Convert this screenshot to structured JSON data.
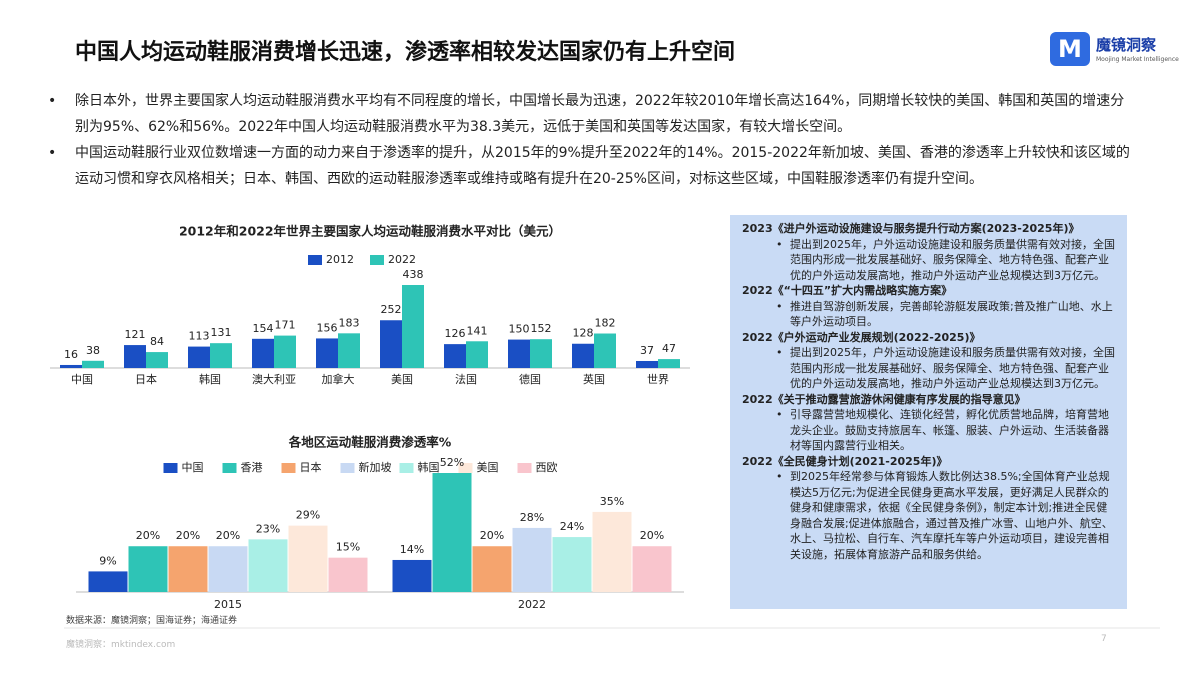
{
  "header": {
    "title": "中国人均运动鞋服消费增长迅速，渗透率相较发达国家仍有上升空间",
    "logo_name": "魔镜洞察",
    "logo_sub": "Moojing Market Intelligence"
  },
  "bullets": [
    "除日本外，世界主要国家人均运动鞋服消费水平均有不同程度的增长，中国增长最为迅速，2022年较2010年增长高达164%，同期增长较快的美国、韩国和英国的增速分别为95%、62%和56%。2022年中国人均运动鞋服消费水平为38.3美元，远低于美国和英国等发达国家，有较大增长空间。",
    "中国运动鞋服行业双位数增速一方面的动力来自于渗透率的提升，从2015年的9%提升至2022年的14%。2015-2022年新加坡、美国、香港的渗透率上升较快和该区域的运动习惯和穿衣风格相关；日本、韩国、西欧的运动鞋服渗透率或维持或略有提升在20-25%区间，对标这些区域，中国鞋服渗透率仍有提升空间。"
  ],
  "chart_data": [
    {
      "type": "bar",
      "title": "2012年和2022年世界主要国家人均运动鞋服消费水平对比（美元）",
      "categories": [
        "中国",
        "日本",
        "韩国",
        "澳大利亚",
        "加拿大",
        "美国",
        "法国",
        "德国",
        "英国",
        "世界"
      ],
      "series": [
        {
          "name": "2012",
          "color": "#1a4fc4",
          "values": [
            16,
            121,
            113,
            154,
            156,
            252,
            126,
            150,
            128,
            37
          ]
        },
        {
          "name": "2022",
          "color": "#2ec4b6",
          "values": [
            38,
            84,
            131,
            171,
            183,
            438,
            141,
            152,
            182,
            47
          ]
        }
      ]
    },
    {
      "type": "bar",
      "title": "各地区运动鞋服消费渗透率%",
      "categories": [
        "2015",
        "2022"
      ],
      "series": [
        {
          "name": "中国",
          "color": "#1a4fc4",
          "values": [
            9,
            14
          ],
          "value_labels": [
            "9%",
            "14%"
          ]
        },
        {
          "name": "香港",
          "color": "#2ec4b6",
          "values": [
            20,
            52
          ],
          "value_labels": [
            "20%",
            "52%"
          ]
        },
        {
          "name": "日本",
          "color": "#f5a46e",
          "values": [
            20,
            20
          ],
          "value_labels": [
            "20%",
            "20%"
          ]
        },
        {
          "name": "新加坡",
          "color": "#c8d9f3",
          "values": [
            20,
            28
          ],
          "value_labels": [
            "20%",
            "28%"
          ]
        },
        {
          "name": "韩国",
          "color": "#a9efe6",
          "values": [
            23,
            24
          ],
          "value_labels": [
            "23%",
            "24%"
          ]
        },
        {
          "name": "美国",
          "color": "#fde8da",
          "values": [
            29,
            35
          ],
          "value_labels": [
            "29%",
            "35%"
          ]
        },
        {
          "name": "西欧",
          "color": "#f9c5cd",
          "values": [
            15,
            20
          ],
          "value_labels": [
            "15%",
            "20%"
          ]
        }
      ]
    }
  ],
  "timeline": [
    {
      "year": "2023",
      "title": "《进户外运动设施建设与服务提升行动方案(2023-2025年)》",
      "text": "提出到2025年，户外运动设施建设和服务质量供需有效对接，全国范围内形成一批发展基础好、服务保障全、地方特色强、配套产业优的户外运动发展高地，推动户外运动产业总规模达到3万亿元。"
    },
    {
      "year": "2022",
      "title": "《“十四五”扩大内需战略实施方案》",
      "text": "推进自驾游创新发展，完善邮轮游艇发展政策;普及推广山地、水上等户外运动项目。"
    },
    {
      "year": "2022",
      "title": "《户外运动产业发展规划(2022-2025)》",
      "text": "提出到2025年，户外运动设施建设和服务质量供需有效对接，全国范围内形成一批发展基础好、服务保障全、地方特色强、配套产业优的户外运动发展高地，推动户外运动产业总规模达到3万亿元。"
    },
    {
      "year": "2022",
      "title": "《关于推动露营旅游休闲健康有序发展的指导意见》",
      "text": "引导露营营地规模化、连锁化经营，孵化优质营地品牌，培育营地龙头企业。鼓励支持旅居车、帐篷、服装、户外运动、生活装备器材等国内露营行业相关。"
    },
    {
      "year": "2022",
      "title": "《全民健身计划(2021-2025年)》",
      "text": "到2025年经常参与体育锻炼人数比例达38.5%;全国体育产业总规模达5万亿元;为促进全民健身更高水平发展，更好满足人民群众的健身和健康需求，依据《全民健身条例》，制定本计划;推进全民健身融合发展;促进体旅融合，通过普及推广冰雪、山地户外、航空、水上、马拉松、自行车、汽车摩托车等户外运动项目，建设完善相关设施，拓展体育旅游产品和服务供给。"
    }
  ],
  "source": "数据来源：魔镜洞察；国海证券；海通证券",
  "footer": {
    "site": "魔镜洞察：mktindex.com",
    "page": "7"
  }
}
